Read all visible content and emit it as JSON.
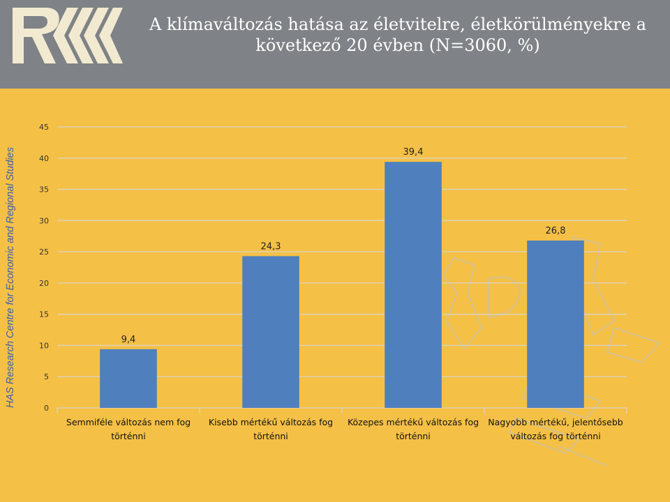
{
  "header": {
    "title_line1": "A klímaváltozás hatása az életvitelre, életkörülményekre a",
    "title_line2": "következő 20 évben (N=3060, %)"
  },
  "side_label": "HAS Research Centre for Economic and Regional Studies",
  "colors": {
    "bar": "#4f7fbd",
    "header": "#7f8387",
    "background": "#f5c046"
  },
  "chart_data": {
    "type": "bar",
    "categories": [
      [
        "Semmiféle változás nem fog",
        "történni"
      ],
      [
        "Kisebb mértékű változás fog",
        "történni"
      ],
      [
        "Közepes mértékű változás fog",
        "történni"
      ],
      [
        "Nagyobb mértékű, jelentősebb",
        "változás fog történni"
      ]
    ],
    "values": [
      9.4,
      24.3,
      39.4,
      26.8
    ],
    "data_labels": [
      "9,4",
      "24,3",
      "39,4",
      "26,8"
    ],
    "ylim": [
      0,
      45
    ],
    "yticks": [
      0,
      5,
      10,
      15,
      20,
      25,
      30,
      35,
      40,
      45
    ],
    "grid": true
  }
}
